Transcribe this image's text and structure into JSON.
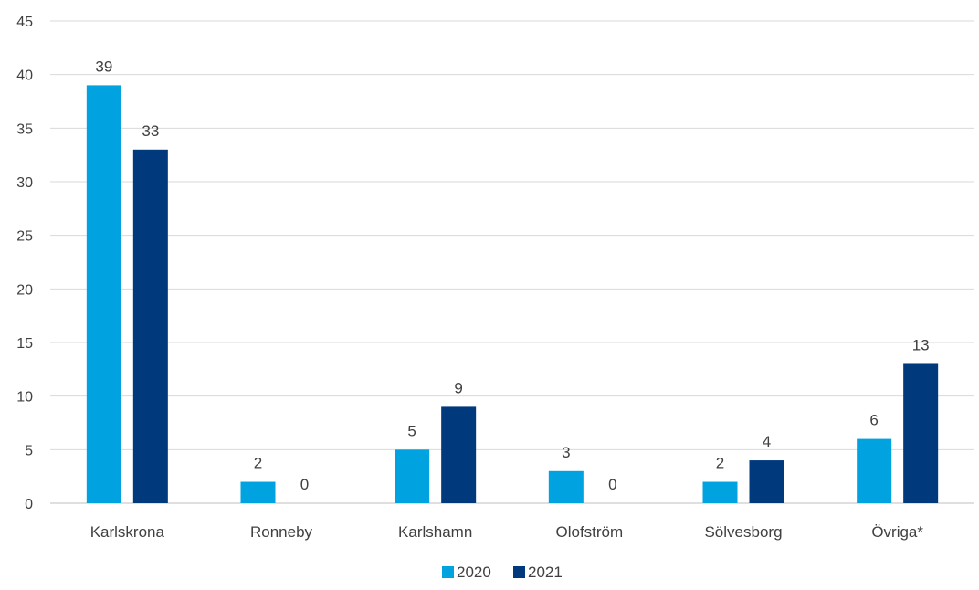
{
  "chart_data": {
    "type": "bar",
    "categories": [
      "Karlskrona",
      "Ronneby",
      "Karlshamn",
      "Olofström",
      "Sölvesborg",
      "Övriga*"
    ],
    "series": [
      {
        "name": "2020",
        "values": [
          39,
          2,
          5,
          3,
          2,
          6
        ],
        "color": "#00a3e0"
      },
      {
        "name": "2021",
        "values": [
          33,
          0,
          9,
          0,
          4,
          13
        ],
        "color": "#003a7d"
      }
    ],
    "ylim": [
      0,
      45
    ],
    "yticks": [
      0,
      5,
      10,
      15,
      20,
      25,
      30,
      35,
      40,
      45
    ],
    "grid": true,
    "legend": "bottom-center",
    "title": "",
    "xlabel": "",
    "ylabel": "",
    "gridColor": "#d9d9d9",
    "axisColor": "#bfbfbf",
    "textColor": "#404040"
  }
}
